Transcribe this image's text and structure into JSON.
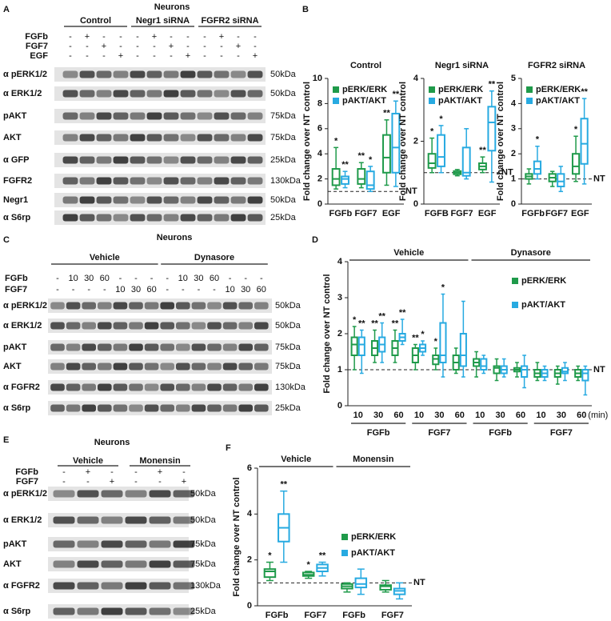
{
  "blots": {
    "A": {
      "panel": "A",
      "title": "Neurons",
      "groups": [
        "Control",
        "Negr1 siRNA",
        "FGFR2 siRNA"
      ],
      "treatments": [
        {
          "name": "FGFb",
          "marks": [
            "-",
            "+",
            "-",
            "-",
            "-",
            "+",
            "-",
            "-",
            "-",
            "+",
            "-",
            "-"
          ]
        },
        {
          "name": "FGF7",
          "marks": [
            "-",
            "-",
            "+",
            "-",
            "-",
            "-",
            "+",
            "-",
            "-",
            "-",
            "+",
            "-"
          ]
        },
        {
          "name": "EGF",
          "marks": [
            "-",
            "-",
            "-",
            "+",
            "-",
            "-",
            "-",
            "+",
            "-",
            "-",
            "-",
            "+"
          ]
        }
      ],
      "rows": [
        {
          "label": "α pERK1/2",
          "size": "50kDa"
        },
        {
          "label": "α ERK1/2",
          "size": "50kDa"
        },
        {
          "label": "pAKT",
          "size": "75kDa"
        },
        {
          "label": "AKT",
          "size": "75kDa"
        },
        {
          "label": "α GFP",
          "size": "25kDa"
        },
        {
          "label": "FGFR2",
          "size": "130kDa"
        },
        {
          "label": "Negr1",
          "size": "50kDa"
        },
        {
          "label": "α S6rp",
          "size": "25kDa"
        }
      ]
    },
    "C": {
      "panel": "C",
      "title": "Neurons",
      "groups": [
        "Vehicle",
        "Dynasore"
      ],
      "treatments": [
        {
          "name": "FGFb",
          "marks": [
            "-",
            "10",
            "30",
            "60",
            "-",
            "-",
            "-",
            "-",
            "10",
            "30",
            "60",
            "-",
            "-",
            "-"
          ]
        },
        {
          "name": "FGF7",
          "marks": [
            "-",
            "-",
            "-",
            "-",
            "10",
            "30",
            "60",
            "-",
            "-",
            "-",
            "-",
            "10",
            "30",
            "60"
          ]
        }
      ],
      "rows": [
        {
          "label": "α pERK1/2",
          "size": "50kDa"
        },
        {
          "label": "α ERK1/2",
          "size": "50kDa"
        },
        {
          "label": "pAKT",
          "size": "75kDa"
        },
        {
          "label": "AKT",
          "size": "75kDa"
        },
        {
          "label": "α FGFR2",
          "size": "130kDa"
        },
        {
          "label": "α S6rp",
          "size": "25kDa"
        }
      ]
    },
    "E": {
      "panel": "E",
      "title": "Neurons",
      "groups": [
        "Vehicle",
        "Monensin"
      ],
      "treatments": [
        {
          "name": "FGFb",
          "marks": [
            "-",
            "+",
            "-",
            "-",
            "+",
            "-"
          ]
        },
        {
          "name": "FGF7",
          "marks": [
            "-",
            "-",
            "+",
            "-",
            "-",
            "+"
          ]
        }
      ],
      "rows": [
        {
          "label": "α pERK1/2",
          "size": "50kDa"
        },
        {
          "label": "α ERK1/2",
          "size": "50kDa"
        },
        {
          "label": "pAKT",
          "size": "75kDa"
        },
        {
          "label": "AKT",
          "size": "75kDa"
        },
        {
          "label": "α FGFR2",
          "size": "130kDa"
        },
        {
          "label": "α S6rp",
          "size": "25kDa"
        }
      ]
    }
  },
  "chart_data": [
    {
      "type": "box",
      "panel": "B",
      "title": "Control",
      "ylabel": "Fold change over NT control",
      "categories": [
        "FGFb",
        "FGF7",
        "EGF"
      ],
      "ylim": [
        0,
        10
      ],
      "yticks": [
        0,
        2,
        4,
        6,
        8,
        10
      ],
      "reference": {
        "value": 1,
        "label": "NT"
      },
      "legend": "upper left",
      "series": [
        {
          "name": "pERK/ERK",
          "color": "#1f9a4a",
          "boxes": [
            [
              1.2,
              1.5,
              2,
              2.8,
              4.5
            ],
            [
              1.3,
              1.6,
              2,
              2.8,
              3.3
            ],
            [
              1.5,
              2.5,
              3.7,
              5.5,
              6.7
            ]
          ],
          "annotations": [
            "*",
            "**",
            "**"
          ]
        },
        {
          "name": "pAKT/AKT",
          "color": "#27aae1",
          "boxes": [
            [
              1.3,
              1.6,
              2,
              2.2,
              2.6
            ],
            [
              1,
              1.2,
              1.5,
              2.6,
              3
            ],
            [
              1.4,
              2.5,
              4.5,
              7.2,
              8.2
            ]
          ],
          "annotations": [
            "**",
            "*",
            "**"
          ]
        }
      ]
    },
    {
      "type": "box",
      "title": "Negr1 siRNA",
      "ylabel": "Fold change over NT control",
      "categories": [
        "FGFB",
        "FGF7",
        "EGF"
      ],
      "ylim": [
        0,
        4
      ],
      "yticks": [
        0,
        2,
        4
      ],
      "reference": {
        "value": 1,
        "label": "NT"
      },
      "legend": "upper left",
      "series": [
        {
          "name": "pERK/ERK",
          "color": "#1f9a4a",
          "boxes": [
            [
              1,
              1.15,
              1.3,
              1.6,
              2.1
            ],
            [
              0.9,
              0.95,
              1,
              1.05,
              1.1
            ],
            [
              1,
              1.1,
              1.2,
              1.3,
              1.5
            ]
          ],
          "annotations": [
            "*",
            null,
            "**"
          ]
        },
        {
          "name": "pAKT/AKT",
          "color": "#27aae1",
          "boxes": [
            [
              1,
              1.2,
              1.5,
              2.2,
              2.5
            ],
            [
              0.8,
              0.9,
              1,
              1.8,
              2.4
            ],
            [
              0.7,
              1.7,
              2.6,
              3.1,
              3.6
            ]
          ],
          "annotations": [
            "*",
            null,
            "**"
          ]
        }
      ]
    },
    {
      "type": "box",
      "title": "FGFR2 siRNA",
      "ylabel": "Fold change over NT control",
      "categories": [
        "FGFb",
        "FGF7",
        "EGF"
      ],
      "ylim": [
        0,
        5
      ],
      "yticks": [
        0,
        1,
        2,
        3,
        4,
        5
      ],
      "reference": {
        "value": 1,
        "label": "NT"
      },
      "legend": "upper left",
      "series": [
        {
          "name": "pERK/ERK",
          "color": "#1f9a4a",
          "boxes": [
            [
              0.8,
              1,
              1.1,
              1.2,
              1.4
            ],
            [
              0.7,
              0.9,
              1.05,
              1.2,
              1.3
            ],
            [
              0.9,
              1.2,
              1.5,
              2,
              2.7
            ]
          ],
          "annotations": [
            null,
            null,
            "*"
          ]
        },
        {
          "name": "pAKT/AKT",
          "color": "#27aae1",
          "boxes": [
            [
              1,
              1.2,
              1.4,
              1.7,
              2.3
            ],
            [
              0.5,
              0.7,
              0.9,
              1.2,
              1.5
            ],
            [
              0.8,
              1.6,
              2.4,
              3.4,
              4.2
            ]
          ],
          "annotations": [
            "*",
            null,
            "**"
          ]
        }
      ]
    },
    {
      "type": "box",
      "panel": "D",
      "ylabel": "Fold change over NT control",
      "headers": [
        "Vehicle",
        "Dynasore"
      ],
      "groups": [
        "FGFb",
        "FGF7",
        "FGFb",
        "FGF7"
      ],
      "x_unit": "(min)",
      "categories": [
        "10",
        "30",
        "60",
        "10",
        "30",
        "60",
        "10",
        "30",
        "60",
        "10",
        "30",
        "60"
      ],
      "ylim": [
        0,
        4
      ],
      "yticks": [
        0,
        1,
        2,
        3,
        4
      ],
      "reference": {
        "value": 1,
        "label": "NT"
      },
      "legend": "upper right",
      "series": [
        {
          "name": "pERK/ERK",
          "color": "#1f9a4a",
          "boxes": [
            [
              1,
              1.4,
              1.7,
              1.9,
              2.2
            ],
            [
              1.2,
              1.4,
              1.6,
              1.8,
              2.1
            ],
            [
              1.2,
              1.4,
              1.6,
              1.8,
              2.1
            ],
            [
              1,
              1.2,
              1.4,
              1.6,
              1.7
            ],
            [
              1,
              1.15,
              1.3,
              1.4,
              1.6
            ],
            [
              0.9,
              1,
              1.2,
              1.4,
              1.6
            ],
            [
              0.8,
              1.1,
              1.2,
              1.3,
              1.5
            ],
            [
              0.7,
              0.9,
              1.05,
              1.1,
              1.3
            ],
            [
              0.8,
              0.95,
              1,
              1.05,
              1.2
            ],
            [
              0.7,
              0.8,
              0.9,
              1,
              1.2
            ],
            [
              0.6,
              0.8,
              0.9,
              1,
              1.1
            ],
            [
              0.7,
              0.8,
              0.9,
              1,
              1.1
            ]
          ],
          "annotations": [
            "*",
            "**",
            "**",
            "**",
            "*",
            null,
            null,
            null,
            null,
            null,
            null,
            null
          ]
        },
        {
          "name": "pAKT/AKT",
          "color": "#27aae1",
          "boxes": [
            [
              0.9,
              1.4,
              1.7,
              1.9,
              2.1
            ],
            [
              1.2,
              1.5,
              1.7,
              1.9,
              2.3
            ],
            [
              1.7,
              1.8,
              1.9,
              2,
              2.4
            ],
            [
              1.4,
              1.5,
              1.6,
              1.7,
              1.8
            ],
            [
              0.8,
              1.2,
              1.4,
              2.3,
              3.1
            ],
            [
              0.8,
              1.1,
              1.4,
              2,
              2.9
            ],
            [
              0.9,
              1,
              1.1,
              1.3,
              1.4
            ],
            [
              0.8,
              0.9,
              1,
              1.1,
              1.3
            ],
            [
              0.5,
              0.8,
              1,
              1.1,
              1.4
            ],
            [
              0.7,
              0.8,
              0.9,
              1,
              1.1
            ],
            [
              0.7,
              0.9,
              0.95,
              1.05,
              1.2
            ],
            [
              0.3,
              0.7,
              0.9,
              1,
              1.1
            ]
          ],
          "annotations": [
            "**",
            "**",
            "**",
            "*",
            "*",
            null,
            null,
            null,
            null,
            null,
            null,
            null
          ]
        }
      ]
    },
    {
      "type": "box",
      "panel": "F",
      "ylabel": "Fold change over NT control",
      "headers": [
        "Vehicle",
        "Monensin"
      ],
      "categories": [
        "FGFb",
        "FGF7",
        "FGFb",
        "FGF7"
      ],
      "ylim": [
        0,
        6
      ],
      "yticks": [
        0,
        2,
        4,
        6
      ],
      "reference": {
        "value": 1,
        "label": "NT"
      },
      "legend": "center right",
      "series": [
        {
          "name": "pERK/ERK",
          "color": "#1f9a4a",
          "boxes": [
            [
              1.1,
              1.25,
              1.5,
              1.6,
              1.9
            ],
            [
              1.2,
              1.3,
              1.35,
              1.45,
              1.5
            ],
            [
              0.6,
              0.75,
              0.85,
              0.95,
              1
            ],
            [
              0.6,
              0.7,
              0.85,
              0.9,
              1.1
            ]
          ],
          "annotations": [
            "*",
            "*",
            null,
            null
          ]
        },
        {
          "name": "pAKT/AKT",
          "color": "#27aae1",
          "boxes": [
            [
              1.9,
              2.8,
              3.4,
              4,
              5
            ],
            [
              1.3,
              1.5,
              1.65,
              1.8,
              1.9
            ],
            [
              0.5,
              0.8,
              0.95,
              1.2,
              1.6
            ],
            [
              0.3,
              0.5,
              0.65,
              0.75,
              1
            ]
          ],
          "annotations": [
            "**",
            "**",
            null,
            null
          ]
        }
      ]
    }
  ]
}
